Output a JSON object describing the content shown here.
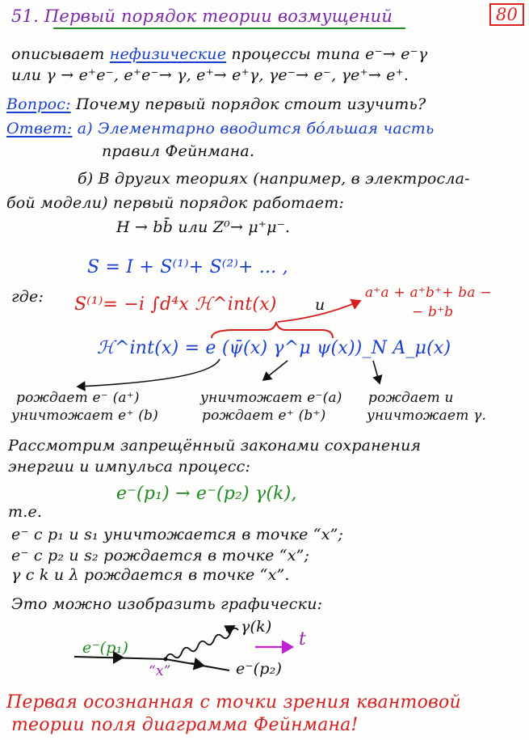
{
  "header": {
    "title": "51. Первый порядок теории возмущений",
    "page_number": "80"
  },
  "intro": {
    "line1_prefix": "описывает",
    "line1_highlight": "нефизические",
    "line1_suffix": "процессы типа e⁻→ e⁻γ",
    "line2": "или γ → e⁺e⁻, e⁺e⁻→ γ, e⁺→ e⁺γ, γe⁻→ e⁻, γe⁺→ e⁺."
  },
  "qa": {
    "question_label": "Вопрос:",
    "question_text": "Почему первый порядок стоит изучить?",
    "answer_label": "Ответ:",
    "answer_a_line1": "а) Элементарно вводится бо́льшая часть",
    "answer_a_line2": "правил Фейнмана.",
    "answer_b_line1": "б) В других теориях (например, в электросла-",
    "answer_b_line2": "бой модели) первый порядок работает:",
    "answer_b_line3": "H → bb̄ или Z⁰→ μ⁺μ⁻."
  },
  "formulas": {
    "s_series": "S = I + S⁽¹⁾+ S⁽²⁾+ ... ,",
    "where_label": "где:",
    "s1": "S⁽¹⁾= −i ∫d⁴x ℋ^int(x)",
    "and_word": "и",
    "ops_line1": "a⁺a + a⁺b⁺+ ba −",
    "ops_line2": "− b⁺b",
    "hint": "ℋ^int(x) = e (ψ̄(x) γ^μ ψ(x))_N A_μ(x)"
  },
  "roles": {
    "col1_line1": "рождает e⁻ (a⁺)",
    "col1_line2": "уничтожает e⁺ (b)",
    "col2_line1": "уничтожает e⁻(a)",
    "col2_line2": "рождает e⁺ (b⁺)",
    "col3_line1": "рождает и",
    "col3_line2": "уничтожает γ."
  },
  "process": {
    "intro_line1": "Рассмотрим запрещённый законами сохранения",
    "intro_line2": "энергии и импульса процесс:",
    "equation": "e⁻(p₁) → e⁻(p₂) γ(k),",
    "ie_label": "т.е.",
    "item1": "e⁻ с p₁ и s₁ уничтожается в точке “x”;",
    "item2": "e⁻ с p₂ и s₂ рождается в точке “x”;",
    "item3": "γ с k и λ рождается в точке “x”.",
    "graph_intro": "Это можно изобразить графически:"
  },
  "diagram": {
    "incoming_label": "e⁻(p₁)",
    "outgoing_label": "e⁻(p₂)",
    "photon_label": "γ(k)",
    "vertex_label": "“x”",
    "time_label": "t",
    "colors": {
      "fermion": "#111111",
      "time_arrow": "#c020d0",
      "vertex": "#8a2aa0"
    }
  },
  "footer": {
    "line1": "Первая осознанная с точки зрения квантовой",
    "line2": "теории поля диаграмма Фейнмана!"
  },
  "colors": {
    "title": "#7a2aa8",
    "title_underline": "#2a8a2a",
    "page_box": "#dd2222",
    "blue": "#1a3fd0",
    "red": "#d42020",
    "green": "#1f8a22"
  }
}
